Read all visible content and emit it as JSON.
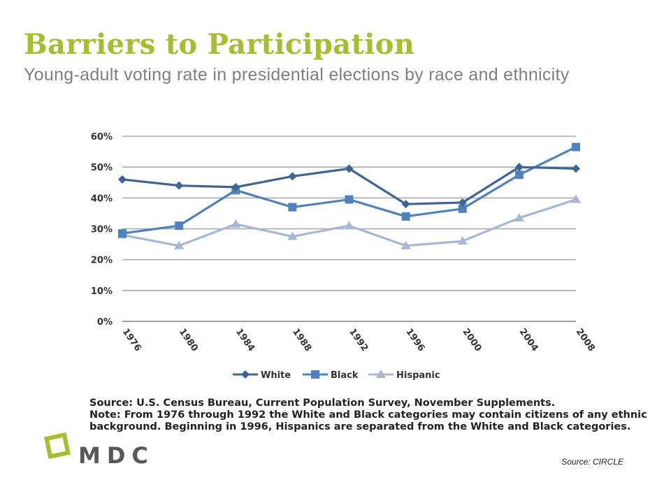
{
  "slide": {
    "title": "Barriers to Participation",
    "subtitle": "Young-adult voting rate in presidential elections by race and ethnicity",
    "title_color": "#a7bd2f",
    "subtitle_color": "#7f7f7f"
  },
  "chart_data": {
    "type": "line",
    "title": "",
    "xlabel": "",
    "ylabel": "",
    "x": [
      "1976",
      "1980",
      "1984",
      "1988",
      "1992",
      "1996",
      "2000",
      "2004",
      "2008"
    ],
    "ylim": [
      0,
      60
    ],
    "yticks": [
      0,
      10,
      20,
      30,
      40,
      50,
      60
    ],
    "ytick_labels": [
      "0%",
      "10%",
      "20%",
      "30%",
      "40%",
      "50%",
      "60%"
    ],
    "grid": true,
    "legend_position": "bottom",
    "series": [
      {
        "name": "White",
        "values": [
          46,
          44,
          43.5,
          47,
          49.5,
          38,
          38.5,
          50,
          49.5
        ],
        "color": "#3e6496",
        "marker": "diamond"
      },
      {
        "name": "Black",
        "values": [
          28.5,
          31,
          42.5,
          37,
          39.5,
          34,
          36.5,
          47.5,
          56.5
        ],
        "color": "#4f81bd",
        "marker": "square"
      },
      {
        "name": "Hispanic",
        "values": [
          28,
          24.5,
          31.5,
          27.5,
          31,
          24.5,
          26,
          33.5,
          39.5
        ],
        "color": "#a6b8d6",
        "marker": "triangle"
      }
    ]
  },
  "notes": {
    "source_line": "Source: U.S. Census Bureau, Current Population Survey, November Supplements.",
    "note_line_1": "Note: From 1976 through 1992 the White and Black categories may contain citizens of any ethnic",
    "note_line_2": "background. Beginning in 1996, Hispanics are separated from the White and Black categories."
  },
  "footer": {
    "logo_text": "MDC",
    "logo_text_color": "#595959",
    "logo_mark_color": "#a7bd2f",
    "source_credit": "Source: CIRCLE"
  }
}
